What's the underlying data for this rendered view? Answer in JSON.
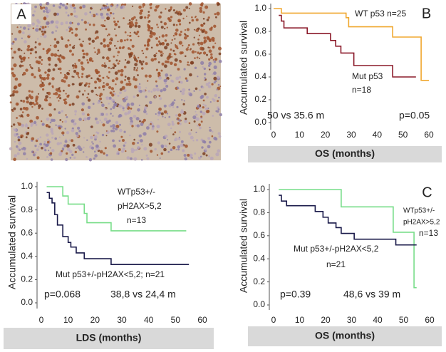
{
  "chart_data": [
    {
      "type": "image",
      "label": "A"
    },
    {
      "type": "step",
      "label": "B",
      "xlabel": "OS (months)",
      "ylabel": "Accumulated survival",
      "xlim": [
        0,
        60
      ],
      "ylim": [
        0,
        1
      ],
      "xticks": [
        0,
        10,
        20,
        30,
        40,
        50,
        60
      ],
      "yticks": [
        {
          "value": 0,
          "label": "0.0"
        },
        0.2,
        0.4,
        0.6,
        0.8,
        {
          "value": 1,
          "label": "1.0"
        }
      ],
      "series": [
        {
          "color": "#f0a830",
          "x": [
            0,
            3,
            28,
            29,
            46,
            57,
            60
          ],
          "values": [
            1.0,
            0.96,
            0.92,
            0.84,
            0.75,
            0.37,
            0.37
          ]
        },
        {
          "color": "#8b1a2a",
          "x": [
            2,
            3,
            4,
            13,
            22,
            24,
            26,
            31,
            46,
            55
          ],
          "values": [
            0.94,
            0.89,
            0.83,
            0.78,
            0.72,
            0.67,
            0.61,
            0.5,
            0.4,
            0.4
          ]
        }
      ],
      "annotations": [
        "WT p53 n=25",
        "Mut p53",
        "n=18",
        "50 vs 35.6 m",
        "p=0.05"
      ]
    },
    {
      "type": "step",
      "xlabel": "LDS (months)",
      "ylabel": "Accumulated survival",
      "xlim": [
        0,
        60
      ],
      "ylim": [
        0,
        1
      ],
      "xticks": [
        0,
        10,
        20,
        30,
        40,
        50,
        60
      ],
      "yticks": [
        {
          "value": 0,
          "label": "0.0"
        },
        0.2,
        0.4,
        0.6,
        0.8,
        {
          "value": 1,
          "label": "1.0"
        }
      ],
      "series": [
        {
          "color": "#77dd88",
          "x": [
            2,
            8,
            10,
            16,
            17,
            26,
            54
          ],
          "values": [
            1.0,
            0.92,
            0.85,
            0.77,
            0.69,
            0.62,
            0.62
          ]
        },
        {
          "color": "#1a1a4a",
          "x": [
            2,
            3,
            4,
            5,
            6,
            8,
            10,
            11,
            13,
            16,
            26,
            55
          ],
          "values": [
            0.95,
            0.9,
            0.86,
            0.76,
            0.67,
            0.57,
            0.52,
            0.48,
            0.43,
            0.38,
            0.33,
            0.33
          ]
        }
      ],
      "annotations": [
        "WTp53+/-",
        "pH2AX>5,2",
        "n=13",
        "Mut p53+/-pH2AX<5,2; n=21",
        "p=0.068",
        "38,8 vs 24,4 m"
      ]
    },
    {
      "type": "step",
      "label": "C",
      "xlabel": "OS (months)",
      "ylabel": "Accumulated survival",
      "xlim": [
        0,
        60
      ],
      "ylim": [
        0,
        1
      ],
      "xticks": [
        0,
        10,
        20,
        30,
        40,
        50,
        60
      ],
      "yticks": [
        {
          "value": 0,
          "label": "0.0"
        },
        0.2,
        0.4,
        0.6,
        0.8,
        {
          "value": 1,
          "label": "1.0"
        }
      ],
      "series": [
        {
          "color": "#77dd88",
          "x": [
            2,
            26,
            46,
            54,
            55
          ],
          "values": [
            1.0,
            0.85,
            0.63,
            0.15,
            0.15
          ]
        },
        {
          "color": "#1a1a4a",
          "x": [
            2,
            3,
            5,
            16,
            19,
            21,
            24,
            26,
            31,
            47,
            55
          ],
          "values": [
            0.95,
            0.9,
            0.86,
            0.81,
            0.76,
            0.71,
            0.67,
            0.62,
            0.57,
            0.52,
            0.52
          ]
        }
      ],
      "annotations": [
        "WTp53+/-",
        "pH2AX>5,2",
        "n=13",
        "Mut p53+/-pH2AX<5,2",
        "n=21",
        "p=0.39",
        "48,6 vs 39 m"
      ]
    }
  ]
}
